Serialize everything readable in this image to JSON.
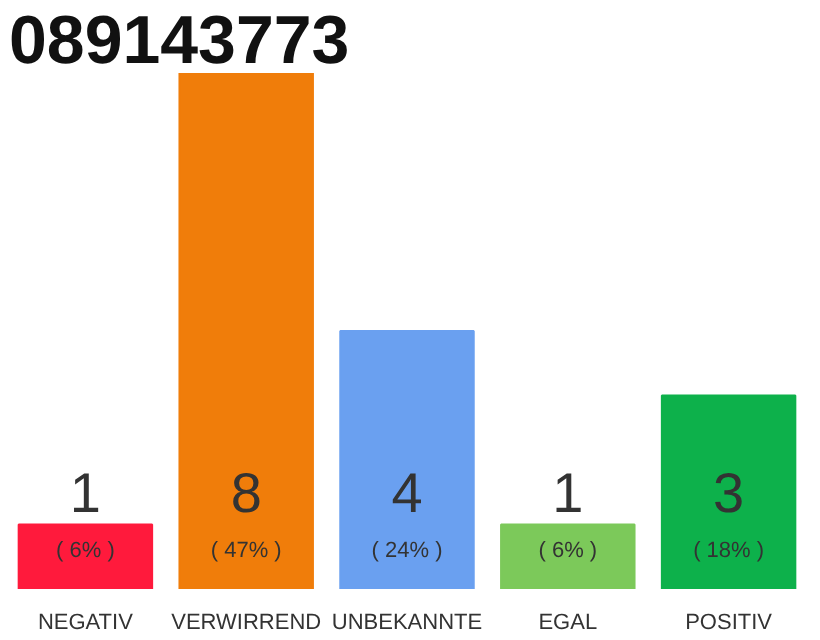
{
  "chart_data": {
    "type": "bar",
    "title": "089143773",
    "categories": [
      "NEGATIV",
      "VERWIRREND",
      "UNBEKANNTE",
      "EGAL",
      "POSITIV"
    ],
    "values": [
      1,
      8,
      4,
      1,
      3
    ],
    "colors": [
      "#ff1a3c",
      "#f07d0a",
      "#6aa0f0",
      "#7cc95a",
      "#0db14b"
    ],
    "ylim": [
      0,
      8
    ],
    "data_labels": true,
    "grid": false,
    "annotations": [
      "( 6% )",
      "( 47% )",
      "( 24% )",
      "( 6% )",
      "( 18% )"
    ]
  }
}
